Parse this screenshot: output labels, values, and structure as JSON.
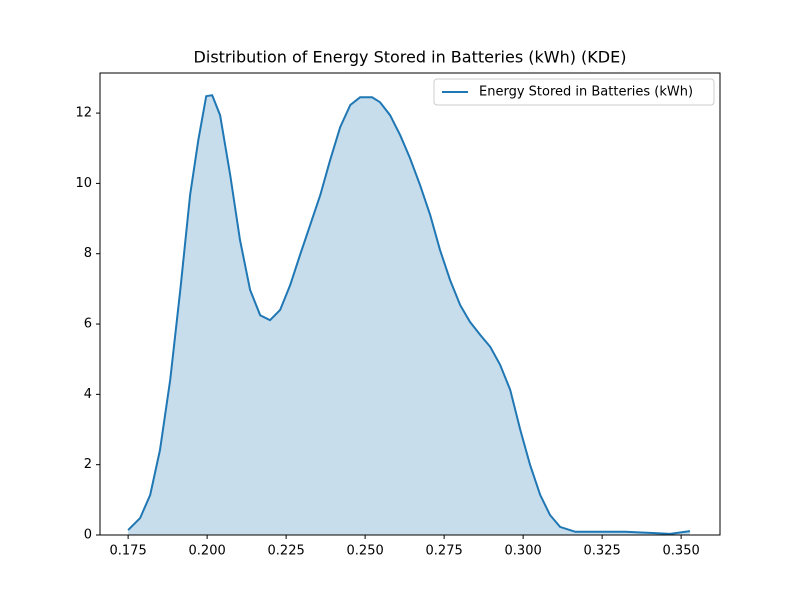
{
  "chart_data": {
    "type": "area",
    "title": "Distribution of Energy Stored in Batteries (kWh) (KDE)",
    "x": [
      0.175,
      0.1788,
      0.182,
      0.1851,
      0.1883,
      0.1915,
      0.1946,
      0.1972,
      0.1997,
      0.2016,
      0.2041,
      0.2073,
      0.2104,
      0.2136,
      0.2168,
      0.2199,
      0.2231,
      0.2263,
      0.2294,
      0.2326,
      0.2358,
      0.2389,
      0.2421,
      0.2453,
      0.2484,
      0.2522,
      0.2547,
      0.2579,
      0.2611,
      0.2642,
      0.2674,
      0.2706,
      0.2737,
      0.2769,
      0.2801,
      0.2832,
      0.2864,
      0.2896,
      0.2927,
      0.2959,
      0.2991,
      0.3022,
      0.3054,
      0.3085,
      0.3117,
      0.3165,
      0.3244,
      0.3323,
      0.3402,
      0.3465,
      0.3528
    ],
    "series": [
      {
        "name": "Energy Stored in Batteries (kWh)",
        "color": "#1f77b4",
        "values": [
          0.14,
          0.48,
          1.14,
          2.42,
          4.41,
          6.97,
          9.67,
          11.23,
          12.48,
          12.51,
          11.94,
          10.24,
          8.39,
          6.97,
          6.25,
          6.11,
          6.4,
          7.11,
          7.96,
          8.81,
          9.67,
          10.66,
          11.6,
          12.23,
          12.45,
          12.45,
          12.31,
          11.94,
          11.37,
          10.72,
          9.95,
          9.1,
          8.11,
          7.25,
          6.54,
          6.06,
          5.69,
          5.35,
          4.84,
          4.13,
          2.99,
          1.99,
          1.14,
          0.57,
          0.23,
          0.09,
          0.09,
          0.09,
          0.06,
          0.03,
          0.11
        ]
      }
    ],
    "xlim": [
      0.1661,
      0.3623
    ],
    "ylim": [
      0,
      13.14
    ],
    "xticks": [
      0.175,
      {
        "value": 0.2,
        "label": "0.200"
      },
      0.225,
      {
        "value": 0.25,
        "label": "0.250"
      },
      0.275,
      {
        "value": 0.3,
        "label": "0.300"
      },
      0.325,
      {
        "value": 0.35,
        "label": "0.350"
      }
    ],
    "yticks": [
      0,
      2,
      4,
      6,
      8,
      10,
      12
    ],
    "legend": "upper right",
    "grid": false
  }
}
